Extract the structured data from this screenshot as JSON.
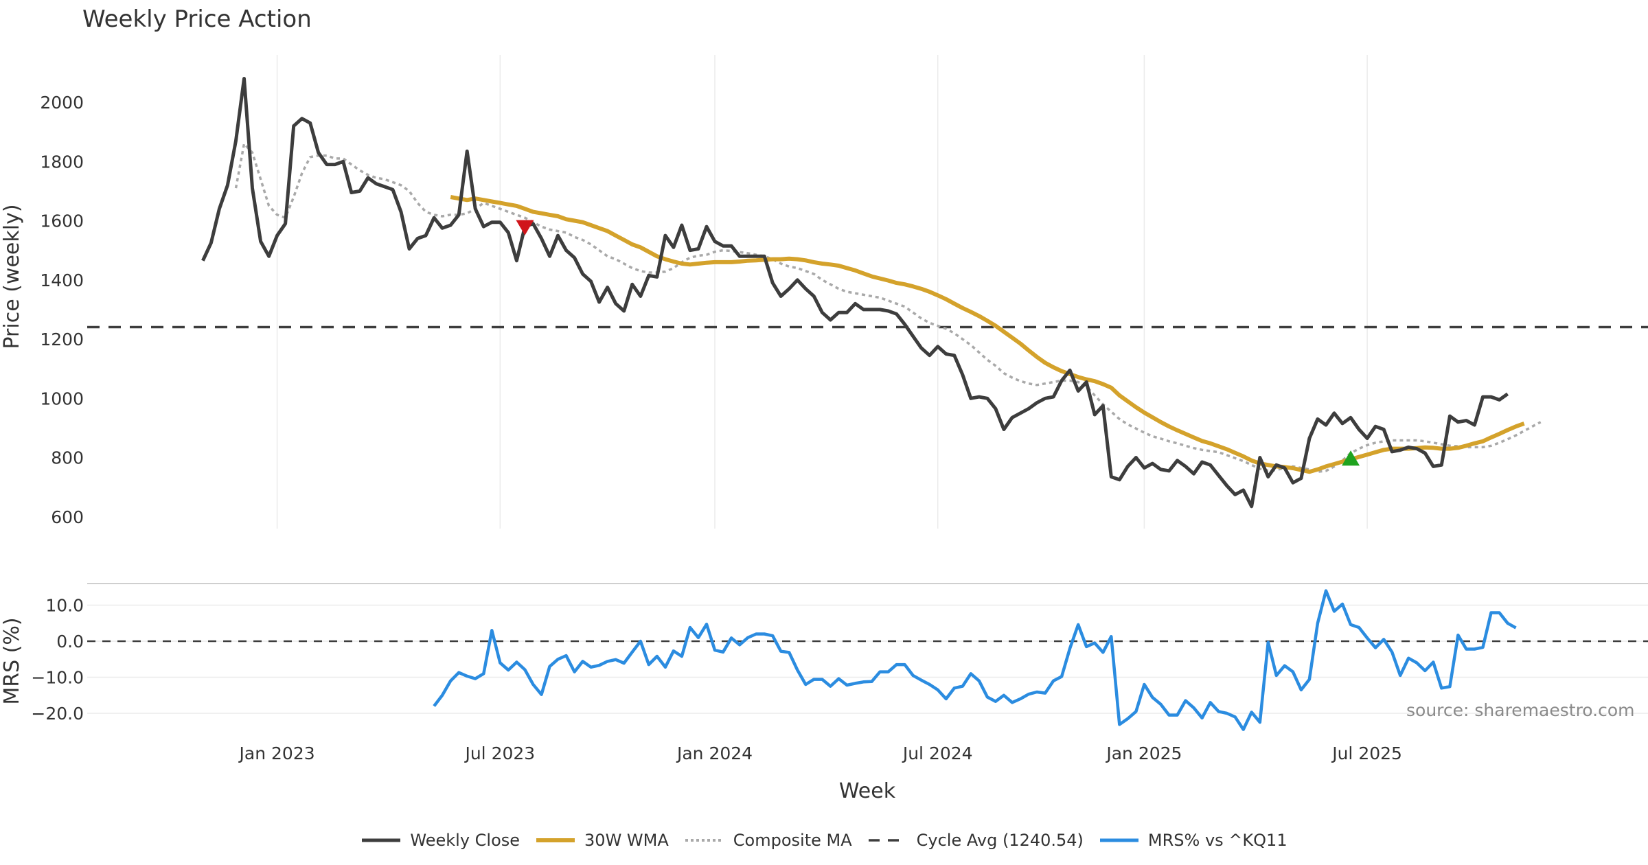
{
  "title": "Weekly Price Action",
  "source": "source: sharemaestro.com",
  "colors": {
    "close": "#3d3d3d",
    "wma": "#d4a22b",
    "composite": "#a9a9a9",
    "cycle": "#3d3d3d",
    "mrs": "#2b8ce0",
    "down_marker": "#d0151b",
    "up_marker": "#1fa31f",
    "grid": "#ebebeb"
  },
  "legend": [
    {
      "label": "Weekly Close",
      "key": "close",
      "style": "solid"
    },
    {
      "label": "30W WMA",
      "key": "wma",
      "style": "solid"
    },
    {
      "label": "Composite MA",
      "key": "composite",
      "style": "dotted"
    },
    {
      "label": "Cycle Avg (1240.54)",
      "key": "cycle",
      "style": "dashed"
    },
    {
      "label": "MRS% vs ^KQ11",
      "key": "mrs",
      "style": "solid"
    }
  ],
  "chart_data": [
    {
      "type": "line",
      "name": "price-panel",
      "title": "Weekly Price Action",
      "xlabel": "Week",
      "ylabel": "Price (weekly)",
      "ylim": [
        560,
        2160
      ],
      "yticks": [
        600,
        800,
        1000,
        1200,
        1400,
        1600,
        1800,
        2000
      ],
      "xlim": [
        -14,
        175
      ],
      "xticks": [
        {
          "label": "Jan 2023",
          "x": 9
        },
        {
          "label": "Jul 2023",
          "x": 36
        },
        {
          "label": "Jan 2024",
          "x": 62
        },
        {
          "label": "Jul 2024",
          "x": 89
        },
        {
          "label": "Jan 2025",
          "x": 114
        },
        {
          "label": "Jul 2025",
          "x": 141
        }
      ],
      "cycle_avg": 1240.54,
      "series": [
        {
          "name": "Weekly Close",
          "x_start": 0,
          "values": [
            1465,
            1525,
            1640,
            1720,
            1870,
            2080,
            1710,
            1530,
            1480,
            1550,
            1590,
            1920,
            1945,
            1930,
            1830,
            1790,
            1790,
            1800,
            1695,
            1700,
            1745,
            1725,
            1715,
            1705,
            1630,
            1505,
            1540,
            1550,
            1610,
            1575,
            1585,
            1620,
            1835,
            1640,
            1580,
            1595,
            1595,
            1560,
            1465,
            1580,
            1590,
            1540,
            1480,
            1550,
            1500,
            1475,
            1420,
            1395,
            1325,
            1375,
            1320,
            1295,
            1385,
            1345,
            1415,
            1410,
            1550,
            1510,
            1585,
            1500,
            1505,
            1580,
            1530,
            1515,
            1515,
            1480,
            1480,
            1480,
            1480,
            1390,
            1345,
            1370,
            1400,
            1370,
            1345,
            1290,
            1265,
            1290,
            1290,
            1320,
            1300,
            1300,
            1300,
            1295,
            1285,
            1250,
            1210,
            1170,
            1145,
            1175,
            1150,
            1145,
            1080,
            1000,
            1005,
            1000,
            965,
            895,
            935,
            950,
            965,
            985,
            1000,
            1005,
            1060,
            1095,
            1025,
            1055,
            945,
            975,
            735,
            725,
            770,
            800,
            765,
            780,
            760,
            755,
            790,
            770,
            745,
            785,
            775,
            740,
            705,
            675,
            690,
            635,
            800,
            735,
            775,
            765,
            715,
            730,
            865,
            930,
            910,
            950,
            915,
            935,
            895,
            865,
            905,
            895,
            820,
            825,
            835,
            830,
            815,
            770,
            775,
            940,
            920,
            925,
            910,
            1005,
            1005,
            995,
            1015
          ]
        },
        {
          "name": "30W WMA",
          "x_start": 30,
          "values": [
            1680,
            1675,
            1670,
            1675,
            1670,
            1665,
            1660,
            1655,
            1650,
            1640,
            1630,
            1625,
            1620,
            1615,
            1605,
            1600,
            1595,
            1585,
            1575,
            1565,
            1550,
            1535,
            1520,
            1510,
            1495,
            1480,
            1470,
            1462,
            1455,
            1452,
            1455,
            1458,
            1460,
            1460,
            1460,
            1462,
            1465,
            1466,
            1468,
            1470,
            1470,
            1472,
            1470,
            1466,
            1460,
            1455,
            1452,
            1448,
            1440,
            1432,
            1422,
            1412,
            1405,
            1398,
            1390,
            1385,
            1378,
            1370,
            1360,
            1348,
            1335,
            1320,
            1305,
            1292,
            1278,
            1262,
            1245,
            1225,
            1205,
            1185,
            1162,
            1140,
            1120,
            1105,
            1092,
            1082,
            1072,
            1064,
            1058,
            1048,
            1036,
            1010,
            990,
            970,
            952,
            936,
            920,
            905,
            892,
            880,
            868,
            856,
            848,
            838,
            828,
            816,
            804,
            790,
            780,
            775,
            770,
            768,
            764,
            758,
            752,
            760,
            770,
            778,
            786,
            794,
            802,
            810,
            818,
            826,
            830,
            830,
            830,
            832,
            834,
            833,
            830,
            830,
            833,
            840,
            848,
            855,
            868,
            880,
            893,
            905,
            915
          ]
        },
        {
          "name": "Composite MA",
          "x_start": 4,
          "values": [
            1710,
            1860,
            1830,
            1740,
            1650,
            1620,
            1610,
            1680,
            1760,
            1815,
            1820,
            1820,
            1810,
            1810,
            1790,
            1770,
            1755,
            1745,
            1740,
            1730,
            1720,
            1700,
            1660,
            1630,
            1620,
            1615,
            1620,
            1620,
            1625,
            1640,
            1660,
            1650,
            1640,
            1630,
            1620,
            1610,
            1595,
            1580,
            1570,
            1565,
            1560,
            1545,
            1535,
            1520,
            1500,
            1480,
            1470,
            1455,
            1440,
            1430,
            1425,
            1425,
            1428,
            1440,
            1460,
            1475,
            1482,
            1485,
            1495,
            1500,
            1498,
            1494,
            1490,
            1485,
            1480,
            1470,
            1455,
            1445,
            1440,
            1430,
            1420,
            1400,
            1385,
            1370,
            1360,
            1355,
            1350,
            1345,
            1340,
            1330,
            1320,
            1310,
            1290,
            1270,
            1255,
            1245,
            1235,
            1220,
            1200,
            1180,
            1155,
            1130,
            1110,
            1085,
            1070,
            1058,
            1050,
            1045,
            1050,
            1055,
            1060,
            1060,
            1055,
            1040,
            1010,
            980,
            955,
            930,
            912,
            898,
            884,
            872,
            864,
            855,
            848,
            840,
            832,
            826,
            822,
            818,
            808,
            798,
            788,
            775,
            762,
            756,
            758,
            765,
            770,
            765,
            760,
            752,
            755,
            770,
            790,
            815,
            830,
            842,
            850,
            855,
            858,
            858,
            858,
            858,
            855,
            850,
            845,
            840,
            838,
            835,
            835,
            835,
            840,
            850,
            862,
            875,
            890,
            905,
            920
          ]
        },
        {
          "name": "MRS% vs ^KQ11",
          "x_start": 28,
          "values": []
        }
      ],
      "markers": [
        {
          "kind": "down",
          "x": 39,
          "y": 1578
        },
        {
          "kind": "up",
          "x": 139,
          "y": 797
        }
      ]
    },
    {
      "type": "line",
      "name": "mrs-panel",
      "ylabel": "MRS (%)",
      "ylim": [
        -24,
        16
      ],
      "yticks": [
        10.0,
        0.0,
        -10.0,
        -20.0
      ],
      "ytick_labels": [
        "10.0",
        "0.0",
        "−10.0",
        "−20.0"
      ],
      "xlim": [
        -14,
        175
      ],
      "series": [
        {
          "name": "MRS% vs ^KQ11",
          "x_start": 28,
          "values": [
            -18,
            -15,
            -11,
            -8.7,
            -9.7,
            -10.4,
            -9,
            3,
            -6,
            -8,
            -5.8,
            -7.9,
            -12,
            -14.8,
            -7,
            -5,
            -4,
            -8.5,
            -5.6,
            -7.2,
            -6.7,
            -5.6,
            -5.1,
            -6.1,
            -3,
            0,
            -6.5,
            -4.2,
            -7.2,
            -2.7,
            -4.2,
            3.8,
            1,
            4.7,
            -2.5,
            -3,
            0.9,
            -1,
            1,
            2,
            2,
            1.5,
            -2.8,
            -3.1,
            -8,
            -12,
            -10.6,
            -10.6,
            -12.5,
            -10.4,
            -12.2,
            -11.7,
            -11.3,
            -11.2,
            -8.5,
            -8.5,
            -6.5,
            -6.5,
            -9.5,
            -10.8,
            -12,
            -13.5,
            -16,
            -13,
            -12.5,
            -9,
            -11,
            -15.5,
            -16.7,
            -15,
            -17,
            -16,
            -14.7,
            -14.1,
            -14.4,
            -11,
            -9.8,
            -2,
            4.6,
            -1.5,
            -0.5,
            -3.1,
            1.3,
            -23.1,
            -21.5,
            -19.5,
            -12,
            -15.6,
            -17.5,
            -20.5,
            -20.5,
            -16.5,
            -18.5,
            -21.3,
            -17,
            -19.5,
            -20,
            -21,
            -24.5,
            -19.7,
            -22.5,
            -0.3,
            -9.5,
            -6.8,
            -8.5,
            -13.5,
            -10.6,
            5,
            14,
            8.3,
            10.3,
            4.6,
            3.8,
            0.9,
            -1.8,
            0.5,
            -3,
            -9.5,
            -4.7,
            -6,
            -8.2,
            -5.8,
            -13,
            -12.6,
            1.7,
            -2.2,
            -2.2,
            -1.7,
            7.9,
            7.9,
            5,
            3.7
          ]
        }
      ]
    }
  ]
}
